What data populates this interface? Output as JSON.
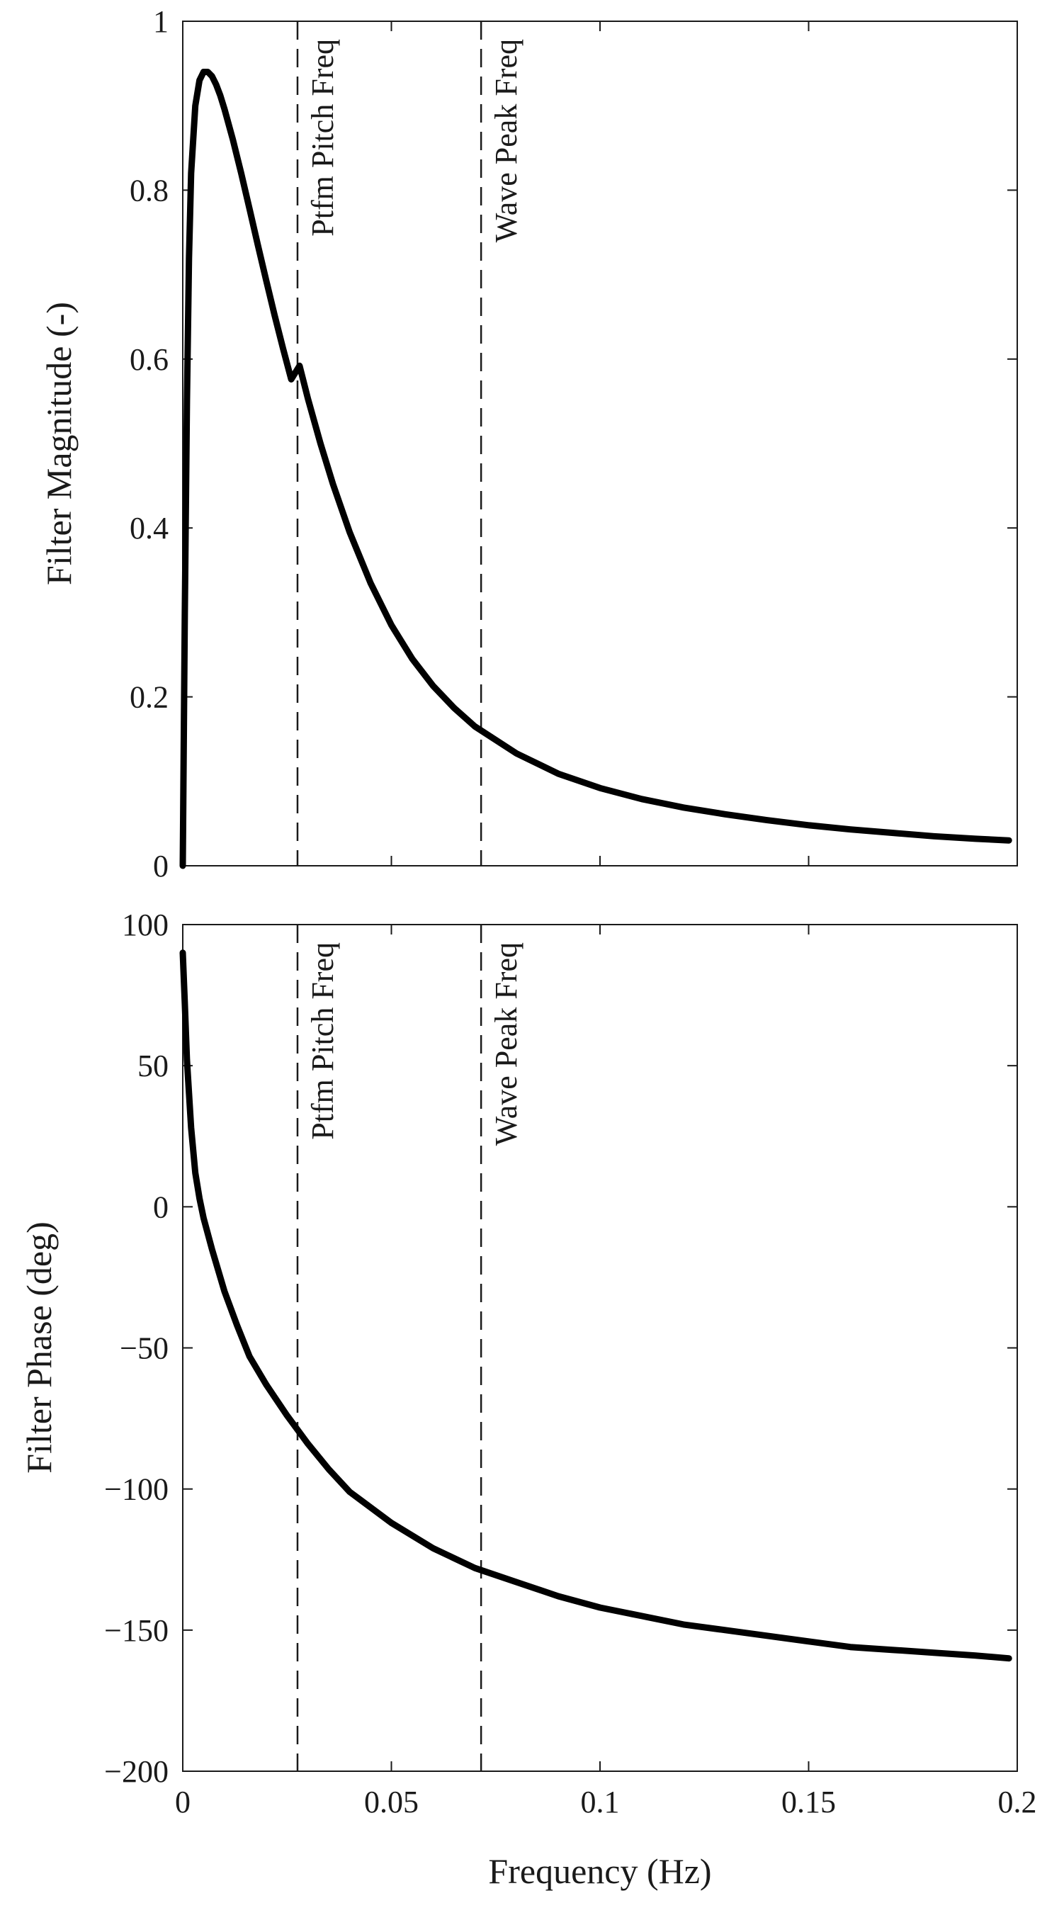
{
  "chart_data": [
    {
      "type": "line",
      "title": "",
      "xlabel": "",
      "ylabel": "Filter Magnitude (-)",
      "xlim": [
        0,
        0.2
      ],
      "ylim": [
        0,
        1
      ],
      "x_ticks": [
        0,
        0.05,
        0.1,
        0.15,
        0.2
      ],
      "x_tick_labels": [],
      "y_ticks": [
        0,
        0.2,
        0.4,
        0.6,
        0.8,
        1
      ],
      "y_tick_labels": [
        "0",
        "0.2",
        "0.4",
        "0.6",
        "0.8",
        "1"
      ],
      "grid": false,
      "series": [
        {
          "x": [
            0,
            0.0005,
            0.001,
            0.0015,
            0.002,
            0.003,
            0.004,
            0.005,
            0.006,
            0.007,
            0.008,
            0.009,
            0.01,
            0.012,
            0.014,
            0.016,
            0.018,
            0.02,
            0.022,
            0.024,
            0.026,
            0.028,
            0.03,
            0.033,
            0.036,
            0.04,
            0.045,
            0.05,
            0.055,
            0.06,
            0.065,
            0.07,
            0.08,
            0.09,
            0.1,
            0.11,
            0.12,
            0.13,
            0.14,
            0.15,
            0.16,
            0.17,
            0.18,
            0.19,
            0.198
          ],
          "values": [
            0,
            0.3,
            0.55,
            0.72,
            0.82,
            0.9,
            0.93,
            0.94,
            0.94,
            0.935,
            0.925,
            0.912,
            0.896,
            0.86,
            0.82,
            0.778,
            0.735,
            0.693,
            0.652,
            0.613,
            0.576,
            0.592,
            0.553,
            0.5,
            0.452,
            0.395,
            0.335,
            0.285,
            0.245,
            0.213,
            0.187,
            0.165,
            0.133,
            0.109,
            0.092,
            0.079,
            0.069,
            0.061,
            0.054,
            0.048,
            0.043,
            0.039,
            0.035,
            0.032,
            0.03
          ]
        }
      ],
      "vlines": [
        {
          "x": 0.0275,
          "label": "Ptfm Pitch Freq"
        },
        {
          "x": 0.0715,
          "label": "Wave Peak Freq"
        }
      ]
    },
    {
      "type": "line",
      "title": "",
      "xlabel": "Frequency (Hz)",
      "ylabel": "Filter Phase (deg)",
      "xlim": [
        0,
        0.2
      ],
      "ylim": [
        -200,
        100
      ],
      "x_ticks": [
        0,
        0.05,
        0.1,
        0.15,
        0.2
      ],
      "x_tick_labels": [
        "0",
        "0.05",
        "0.1",
        "0.15",
        "0.2"
      ],
      "y_ticks": [
        -200,
        -150,
        -100,
        -50,
        0,
        50,
        100
      ],
      "y_tick_labels": [
        "−200",
        "−150",
        "−100",
        "−50",
        "0",
        "50",
        "100"
      ],
      "grid": false,
      "series": [
        {
          "x": [
            0,
            0.0005,
            0.001,
            0.002,
            0.003,
            0.004,
            0.005,
            0.007,
            0.01,
            0.013,
            0.016,
            0.02,
            0.025,
            0.03,
            0.035,
            0.04,
            0.05,
            0.06,
            0.07,
            0.08,
            0.09,
            0.1,
            0.11,
            0.12,
            0.13,
            0.14,
            0.15,
            0.16,
            0.17,
            0.18,
            0.19,
            0.198
          ],
          "values": [
            90,
            72,
            52,
            28,
            12,
            3,
            -4,
            -15,
            -30,
            -42,
            -53,
            -63,
            -74,
            -84,
            -93,
            -101,
            -112,
            -121,
            -128,
            -133,
            -138,
            -142,
            -145,
            -148,
            -150,
            -152,
            -154,
            -156,
            -157,
            -158,
            -159,
            -160
          ]
        }
      ],
      "vlines": [
        {
          "x": 0.0275,
          "label": "Ptfm Pitch Freq"
        },
        {
          "x": 0.0715,
          "label": "Wave Peak Freq"
        }
      ]
    }
  ]
}
